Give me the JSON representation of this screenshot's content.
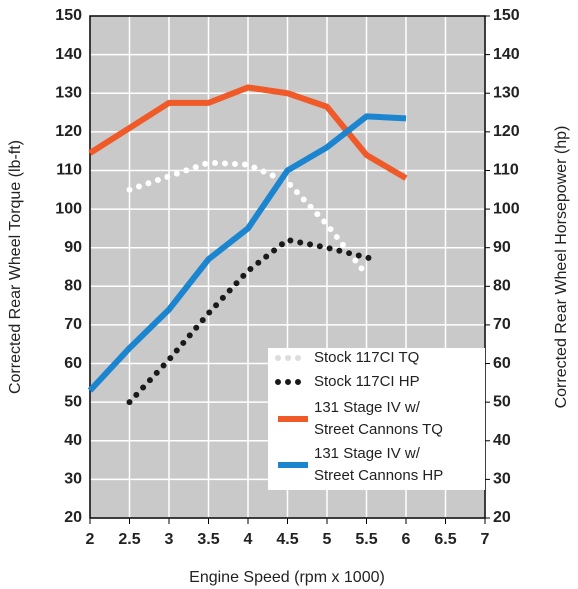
{
  "chart_data": {
    "type": "line",
    "xlabel": "Engine Speed (rpm x 1000)",
    "ylabel": "Corrected Rear Wheel Torque (lb-ft)",
    "y2label": "Corrected Rear Wheel Horsepower (hp)",
    "xlim": [
      2,
      7
    ],
    "xticks": [
      2,
      2.5,
      3,
      3.5,
      4,
      4.5,
      5,
      5.5,
      6,
      6.5,
      7
    ],
    "ylim": [
      20,
      150
    ],
    "yticks": [
      20,
      30,
      40,
      50,
      60,
      70,
      80,
      90,
      100,
      110,
      120,
      130,
      140,
      150
    ],
    "y2lim": [
      20,
      150
    ],
    "y2ticks": [
      20,
      30,
      40,
      50,
      60,
      70,
      80,
      90,
      100,
      110,
      120,
      130,
      140,
      150
    ],
    "grid": true,
    "legend": "lower right",
    "series": [
      {
        "name": [
          "Stock 117CI TQ"
        ],
        "color": "#ffffff",
        "style": "dotted",
        "x": [
          2.5,
          3,
          3.5,
          4,
          4.5,
          5,
          5.5
        ],
        "values": [
          105,
          108.5,
          112,
          111.5,
          107,
          96,
          83
        ]
      },
      {
        "name": [
          "Stock 117CI HP"
        ],
        "color": "#1a1a1a",
        "style": "dotted",
        "axis": "y2",
        "x": [
          2.5,
          3,
          3.5,
          4,
          4.5,
          5,
          5.6
        ],
        "values": [
          50,
          61,
          73,
          84,
          92,
          90,
          87
        ]
      },
      {
        "name": [
          "131 Stage IV w/",
          "Street Cannons TQ"
        ],
        "color": "#f05a28",
        "style": "solid",
        "x": [
          2,
          2.5,
          3,
          3.5,
          4,
          4.5,
          5,
          5.5,
          6
        ],
        "values": [
          114.5,
          121,
          127.5,
          127.5,
          131.5,
          130,
          126.5,
          114,
          108
        ]
      },
      {
        "name": [
          "131 Stage IV w/",
          "Street Cannons HP"
        ],
        "color": "#1b85d0",
        "style": "solid",
        "axis": "y2",
        "x": [
          2,
          2.5,
          3,
          3.5,
          4,
          4.5,
          5,
          5.5,
          6
        ],
        "values": [
          53,
          64,
          74,
          87,
          95,
          110,
          116,
          124,
          123.5
        ]
      }
    ]
  }
}
